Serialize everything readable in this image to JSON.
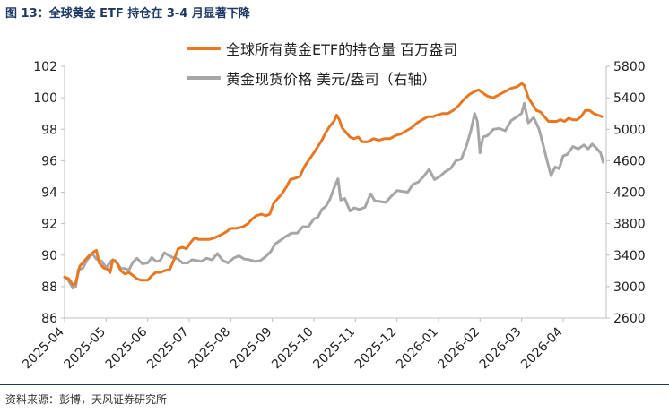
{
  "figure": {
    "title": "图 13：全球黄金 ETF 持仓在 3-4 月显著下降",
    "source": "资料来源：彭博，天风证券研究所"
  },
  "colors": {
    "holdings": "#e87722",
    "price": "#a6a6a6",
    "axis": "#bfbfbf",
    "text": "#222222",
    "title": "#1f3864"
  },
  "chart_data": {
    "type": "line",
    "title": "",
    "legend_placement": "top",
    "grid": false,
    "x_ticks": [
      "2025-04",
      "2025-05",
      "2025-06",
      "2025-07",
      "2025-08",
      "2025-09",
      "2025-10",
      "2025-11",
      "2025-12",
      "2026-01",
      "2026-02",
      "2026-03",
      "2026-04"
    ],
    "y_left": {
      "min": 86,
      "max": 102,
      "ticks": [
        "86",
        "88",
        "90",
        "92",
        "94",
        "96",
        "98",
        "100",
        "102"
      ]
    },
    "y_right": {
      "min": 2600,
      "max": 5800,
      "ticks": [
        "2600",
        "3000",
        "3400",
        "3800",
        "4200",
        "4600",
        "5000",
        "5400",
        "5800"
      ]
    },
    "series": [
      {
        "name": "全球所有黄金ETF的持仓量 百万盎司",
        "axis": "left",
        "color": "#e87722",
        "points": [
          [
            "2025-04-01",
            88.6
          ],
          [
            "2025-04-04",
            88.5
          ],
          [
            "2025-04-07",
            88.1
          ],
          [
            "2025-04-09",
            88.2
          ],
          [
            "2025-04-12",
            89.3
          ],
          [
            "2025-04-15",
            89.6
          ],
          [
            "2025-04-18",
            89.9
          ],
          [
            "2025-04-22",
            90.2
          ],
          [
            "2025-04-24",
            90.3
          ],
          [
            "2025-04-26",
            89.5
          ],
          [
            "2025-04-29",
            89.2
          ],
          [
            "2025-05-02",
            89.1
          ],
          [
            "2025-05-04",
            88.9
          ],
          [
            "2025-05-06",
            89.7
          ],
          [
            "2025-05-09",
            89.5
          ],
          [
            "2025-05-12",
            89.0
          ],
          [
            "2025-05-15",
            88.8
          ],
          [
            "2025-05-18",
            88.9
          ],
          [
            "2025-05-21",
            88.7
          ],
          [
            "2025-05-24",
            88.5
          ],
          [
            "2025-05-27",
            88.4
          ],
          [
            "2025-06-01",
            88.4
          ],
          [
            "2025-06-04",
            88.7
          ],
          [
            "2025-06-07",
            88.9
          ],
          [
            "2025-06-10",
            88.9
          ],
          [
            "2025-06-13",
            89.0
          ],
          [
            "2025-06-17",
            89.1
          ],
          [
            "2025-06-20",
            89.7
          ],
          [
            "2025-06-23",
            90.4
          ],
          [
            "2025-06-26",
            90.5
          ],
          [
            "2025-06-29",
            90.4
          ],
          [
            "2025-07-02",
            90.8
          ],
          [
            "2025-07-05",
            91.1
          ],
          [
            "2025-07-08",
            91.0
          ],
          [
            "2025-07-12",
            91.0
          ],
          [
            "2025-07-16",
            91.0
          ],
          [
            "2025-07-20",
            91.1
          ],
          [
            "2025-07-25",
            91.3
          ],
          [
            "2025-07-29",
            91.5
          ],
          [
            "2025-08-01",
            91.7
          ],
          [
            "2025-08-05",
            91.7
          ],
          [
            "2025-08-10",
            91.8
          ],
          [
            "2025-08-14",
            92.0
          ],
          [
            "2025-08-17",
            92.3
          ],
          [
            "2025-08-20",
            92.5
          ],
          [
            "2025-08-24",
            92.6
          ],
          [
            "2025-08-27",
            92.5
          ],
          [
            "2025-08-30",
            92.6
          ],
          [
            "2025-09-02",
            93.3
          ],
          [
            "2025-09-05",
            93.6
          ],
          [
            "2025-09-08",
            93.9
          ],
          [
            "2025-09-11",
            94.3
          ],
          [
            "2025-09-14",
            94.8
          ],
          [
            "2025-09-18",
            94.9
          ],
          [
            "2025-09-21",
            95.0
          ],
          [
            "2025-09-24",
            95.6
          ],
          [
            "2025-09-27",
            96.0
          ],
          [
            "2025-10-01",
            96.5
          ],
          [
            "2025-10-04",
            96.9
          ],
          [
            "2025-10-07",
            97.3
          ],
          [
            "2025-10-10",
            97.8
          ],
          [
            "2025-10-13",
            98.2
          ],
          [
            "2025-10-16",
            98.5
          ],
          [
            "2025-10-18",
            98.9
          ],
          [
            "2025-10-20",
            98.6
          ],
          [
            "2025-10-22",
            98.1
          ],
          [
            "2025-10-25",
            97.8
          ],
          [
            "2025-10-28",
            97.5
          ],
          [
            "2025-10-31",
            97.4
          ],
          [
            "2025-11-03",
            97.5
          ],
          [
            "2025-11-06",
            97.2
          ],
          [
            "2025-11-10",
            97.2
          ],
          [
            "2025-11-14",
            97.4
          ],
          [
            "2025-11-18",
            97.3
          ],
          [
            "2025-11-22",
            97.4
          ],
          [
            "2025-11-26",
            97.4
          ],
          [
            "2025-11-30",
            97.6
          ],
          [
            "2025-12-04",
            97.7
          ],
          [
            "2025-12-08",
            97.9
          ],
          [
            "2025-12-12",
            98.1
          ],
          [
            "2025-12-16",
            98.4
          ],
          [
            "2025-12-20",
            98.6
          ],
          [
            "2025-12-24",
            98.8
          ],
          [
            "2025-12-28",
            98.8
          ],
          [
            "2025-12-31",
            98.9
          ],
          [
            "2026-01-04",
            99.0
          ],
          [
            "2026-01-08",
            99.0
          ],
          [
            "2026-01-12",
            99.2
          ],
          [
            "2026-01-16",
            99.5
          ],
          [
            "2026-01-20",
            99.9
          ],
          [
            "2026-01-24",
            100.2
          ],
          [
            "2026-01-28",
            100.4
          ],
          [
            "2026-01-31",
            100.5
          ],
          [
            "2026-02-03",
            100.3
          ],
          [
            "2026-02-06",
            100.1
          ],
          [
            "2026-02-10",
            100.0
          ],
          [
            "2026-02-14",
            100.2
          ],
          [
            "2026-02-18",
            100.4
          ],
          [
            "2026-02-22",
            100.6
          ],
          [
            "2026-02-26",
            100.7
          ],
          [
            "2026-03-01",
            100.9
          ],
          [
            "2026-03-03",
            100.8
          ],
          [
            "2026-03-06",
            100.0
          ],
          [
            "2026-03-09",
            99.6
          ],
          [
            "2026-03-12",
            99.2
          ],
          [
            "2026-03-15",
            99.1
          ],
          [
            "2026-03-18",
            98.8
          ],
          [
            "2026-03-21",
            98.5
          ],
          [
            "2026-03-24",
            98.5
          ],
          [
            "2026-03-27",
            98.5
          ],
          [
            "2026-03-30",
            98.6
          ],
          [
            "2026-04-02",
            98.5
          ],
          [
            "2026-04-05",
            98.7
          ],
          [
            "2026-04-08",
            98.6
          ],
          [
            "2026-04-11",
            98.6
          ],
          [
            "2026-04-14",
            98.8
          ],
          [
            "2026-04-17",
            99.2
          ],
          [
            "2026-04-20",
            99.2
          ],
          [
            "2026-04-23",
            99.0
          ],
          [
            "2026-04-26",
            98.9
          ],
          [
            "2026-04-29",
            98.8
          ]
        ]
      },
      {
        "name": "黄金现货价格 美元/盎司（右轴）",
        "axis": "right",
        "color": "#a6a6a6",
        "points": [
          [
            "2025-04-01",
            3120
          ],
          [
            "2025-04-03",
            3100
          ],
          [
            "2025-04-05",
            3040
          ],
          [
            "2025-04-07",
            2980
          ],
          [
            "2025-04-09",
            3000
          ],
          [
            "2025-04-11",
            3220
          ],
          [
            "2025-04-14",
            3230
          ],
          [
            "2025-04-17",
            3330
          ],
          [
            "2025-04-21",
            3420
          ],
          [
            "2025-04-24",
            3350
          ],
          [
            "2025-04-28",
            3320
          ],
          [
            "2025-05-01",
            3240
          ],
          [
            "2025-05-05",
            3330
          ],
          [
            "2025-05-08",
            3330
          ],
          [
            "2025-05-12",
            3230
          ],
          [
            "2025-05-15",
            3230
          ],
          [
            "2025-05-18",
            3210
          ],
          [
            "2025-05-21",
            3310
          ],
          [
            "2025-05-24",
            3360
          ],
          [
            "2025-05-28",
            3290
          ],
          [
            "2025-06-01",
            3300
          ],
          [
            "2025-06-04",
            3370
          ],
          [
            "2025-06-07",
            3320
          ],
          [
            "2025-06-10",
            3330
          ],
          [
            "2025-06-13",
            3430
          ],
          [
            "2025-06-16",
            3400
          ],
          [
            "2025-06-19",
            3370
          ],
          [
            "2025-06-23",
            3350
          ],
          [
            "2025-06-26",
            3300
          ],
          [
            "2025-06-30",
            3300
          ],
          [
            "2025-07-03",
            3340
          ],
          [
            "2025-07-07",
            3330
          ],
          [
            "2025-07-10",
            3320
          ],
          [
            "2025-07-14",
            3360
          ],
          [
            "2025-07-18",
            3340
          ],
          [
            "2025-07-22",
            3420
          ],
          [
            "2025-07-26",
            3330
          ],
          [
            "2025-07-30",
            3300
          ],
          [
            "2025-08-03",
            3360
          ],
          [
            "2025-08-07",
            3390
          ],
          [
            "2025-08-11",
            3350
          ],
          [
            "2025-08-15",
            3340
          ],
          [
            "2025-08-19",
            3320
          ],
          [
            "2025-08-23",
            3330
          ],
          [
            "2025-08-27",
            3380
          ],
          [
            "2025-08-31",
            3450
          ],
          [
            "2025-09-03",
            3540
          ],
          [
            "2025-09-07",
            3590
          ],
          [
            "2025-09-11",
            3640
          ],
          [
            "2025-09-15",
            3680
          ],
          [
            "2025-09-19",
            3680
          ],
          [
            "2025-09-23",
            3760
          ],
          [
            "2025-09-27",
            3760
          ],
          [
            "2025-10-01",
            3860
          ],
          [
            "2025-10-04",
            3880
          ],
          [
            "2025-10-07",
            3980
          ],
          [
            "2025-10-10",
            4020
          ],
          [
            "2025-10-13",
            4110
          ],
          [
            "2025-10-16",
            4250
          ],
          [
            "2025-10-19",
            4370
          ],
          [
            "2025-10-21",
            4100
          ],
          [
            "2025-10-24",
            4120
          ],
          [
            "2025-10-28",
            3960
          ],
          [
            "2025-10-31",
            4000
          ],
          [
            "2025-11-04",
            3980
          ],
          [
            "2025-11-08",
            4010
          ],
          [
            "2025-11-12",
            4180
          ],
          [
            "2025-11-15",
            4090
          ],
          [
            "2025-11-19",
            4080
          ],
          [
            "2025-11-23",
            4070
          ],
          [
            "2025-11-27",
            4150
          ],
          [
            "2025-12-01",
            4220
          ],
          [
            "2025-12-05",
            4210
          ],
          [
            "2025-12-09",
            4200
          ],
          [
            "2025-12-13",
            4300
          ],
          [
            "2025-12-17",
            4330
          ],
          [
            "2025-12-21",
            4400
          ],
          [
            "2025-12-25",
            4490
          ],
          [
            "2025-12-29",
            4360
          ],
          [
            "2026-01-02",
            4400
          ],
          [
            "2026-01-06",
            4460
          ],
          [
            "2026-01-10",
            4500
          ],
          [
            "2026-01-14",
            4600
          ],
          [
            "2026-01-18",
            4620
          ],
          [
            "2026-01-22",
            4800
          ],
          [
            "2026-01-25",
            4970
          ],
          [
            "2026-01-28",
            5200
          ],
          [
            "2026-01-30",
            5100
          ],
          [
            "2026-02-01",
            4700
          ],
          [
            "2026-02-03",
            4900
          ],
          [
            "2026-02-06",
            4920
          ],
          [
            "2026-02-10",
            5000
          ],
          [
            "2026-02-14",
            5010
          ],
          [
            "2026-02-18",
            4980
          ],
          [
            "2026-02-22",
            5110
          ],
          [
            "2026-02-26",
            5160
          ],
          [
            "2026-03-01",
            5200
          ],
          [
            "2026-03-03",
            5330
          ],
          [
            "2026-03-06",
            5080
          ],
          [
            "2026-03-10",
            5150
          ],
          [
            "2026-03-14",
            5000
          ],
          [
            "2026-03-17",
            4810
          ],
          [
            "2026-03-20",
            4600
          ],
          [
            "2026-03-23",
            4410
          ],
          [
            "2026-03-26",
            4520
          ],
          [
            "2026-03-29",
            4500
          ],
          [
            "2026-04-01",
            4660
          ],
          [
            "2026-04-04",
            4680
          ],
          [
            "2026-04-08",
            4780
          ],
          [
            "2026-04-12",
            4750
          ],
          [
            "2026-04-16",
            4800
          ],
          [
            "2026-04-19",
            4750
          ],
          [
            "2026-04-22",
            4810
          ],
          [
            "2026-04-25",
            4760
          ],
          [
            "2026-04-28",
            4700
          ],
          [
            "2026-04-30",
            4580
          ]
        ]
      }
    ]
  }
}
